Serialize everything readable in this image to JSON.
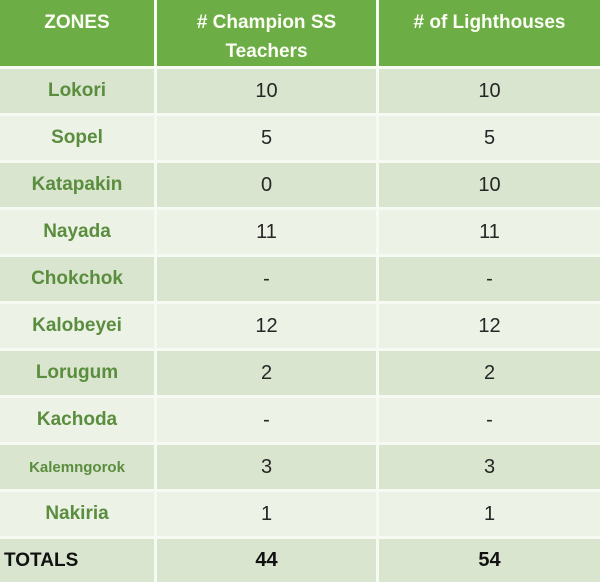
{
  "table": {
    "header": {
      "zones": "ZONES",
      "teachers": "# Champion SS Teachers",
      "lighthouses": "# of Lighthouses"
    },
    "rows": [
      {
        "zone": "Lokori",
        "teachers": "10",
        "lighthouses": "10"
      },
      {
        "zone": "Sopel",
        "teachers": "5",
        "lighthouses": "5"
      },
      {
        "zone": "Katapakin",
        "teachers": "0",
        "lighthouses": "10"
      },
      {
        "zone": "Nayada",
        "teachers": "11",
        "lighthouses": "11"
      },
      {
        "zone": "Chokchok",
        "teachers": "-",
        "lighthouses": "-"
      },
      {
        "zone": "Kalobeyei",
        "teachers": "12",
        "lighthouses": "12"
      },
      {
        "zone": "Lorugum",
        "teachers": "2",
        "lighthouses": "2"
      },
      {
        "zone": "Kachoda",
        "teachers": "-",
        "lighthouses": "-"
      },
      {
        "zone": "Kalemngorok",
        "teachers": "3",
        "lighthouses": "3"
      },
      {
        "zone": "Nakiria",
        "teachers": "1",
        "lighthouses": "1"
      }
    ],
    "totals": {
      "label": "TOTALS",
      "teachers": "44",
      "lighthouses": "54"
    }
  },
  "colors": {
    "header_bg": "#6cad45",
    "header_text": "#fcfdf5",
    "row_odd": "#d9e5cf",
    "row_even": "#ecf2e6",
    "zone_text": "#5a8d3d",
    "value_text": "#262626",
    "divider": "#f7faf2"
  },
  "chart_data": {
    "type": "table",
    "title": "Zones: Champion SS Teachers and Lighthouses",
    "columns": [
      "ZONES",
      "# Champion SS Teachers",
      "# of Lighthouses"
    ],
    "categories": [
      "Lokori",
      "Sopel",
      "Katapakin",
      "Nayada",
      "Chokchok",
      "Kalobeyei",
      "Lorugum",
      "Kachoda",
      "Kalemngorok",
      "Nakiria"
    ],
    "series": [
      {
        "name": "# Champion SS Teachers",
        "values": [
          10,
          5,
          0,
          11,
          null,
          12,
          2,
          null,
          3,
          1
        ]
      },
      {
        "name": "# of Lighthouses",
        "values": [
          10,
          5,
          10,
          11,
          null,
          12,
          2,
          null,
          3,
          1
        ]
      }
    ],
    "totals": {
      "label": "TOTALS",
      "champion_ss_teachers": 44,
      "lighthouses": 54
    },
    "missing_value_marker": "-"
  }
}
